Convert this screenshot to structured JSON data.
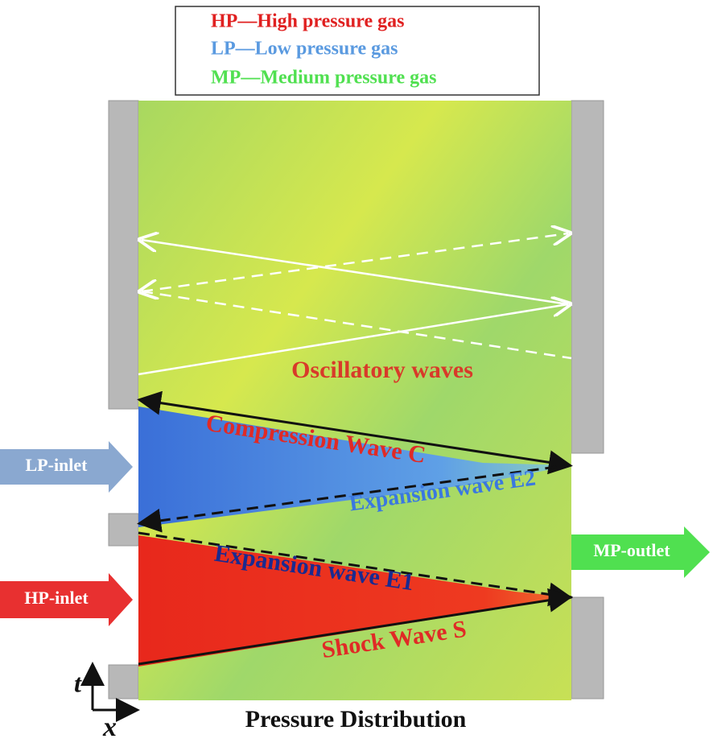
{
  "legend": {
    "items": [
      "HP—High pressure gas",
      "LP—Low pressure gas",
      "MP—Medium pressure gas"
    ]
  },
  "labels": {
    "oscillatory": "Oscillatory waves",
    "compression": "Compression Wave C",
    "expansion_e2": "Expansion wave E2",
    "expansion_e1": "Expansion wave E1",
    "shock": "Shock Wave S"
  },
  "ports": {
    "lp_inlet": "LP-inlet",
    "hp_inlet": "HP-inlet",
    "mp_outlet": "MP-outlet"
  },
  "axes": {
    "t": "t",
    "x": "x"
  },
  "caption": "Pressure Distribution"
}
